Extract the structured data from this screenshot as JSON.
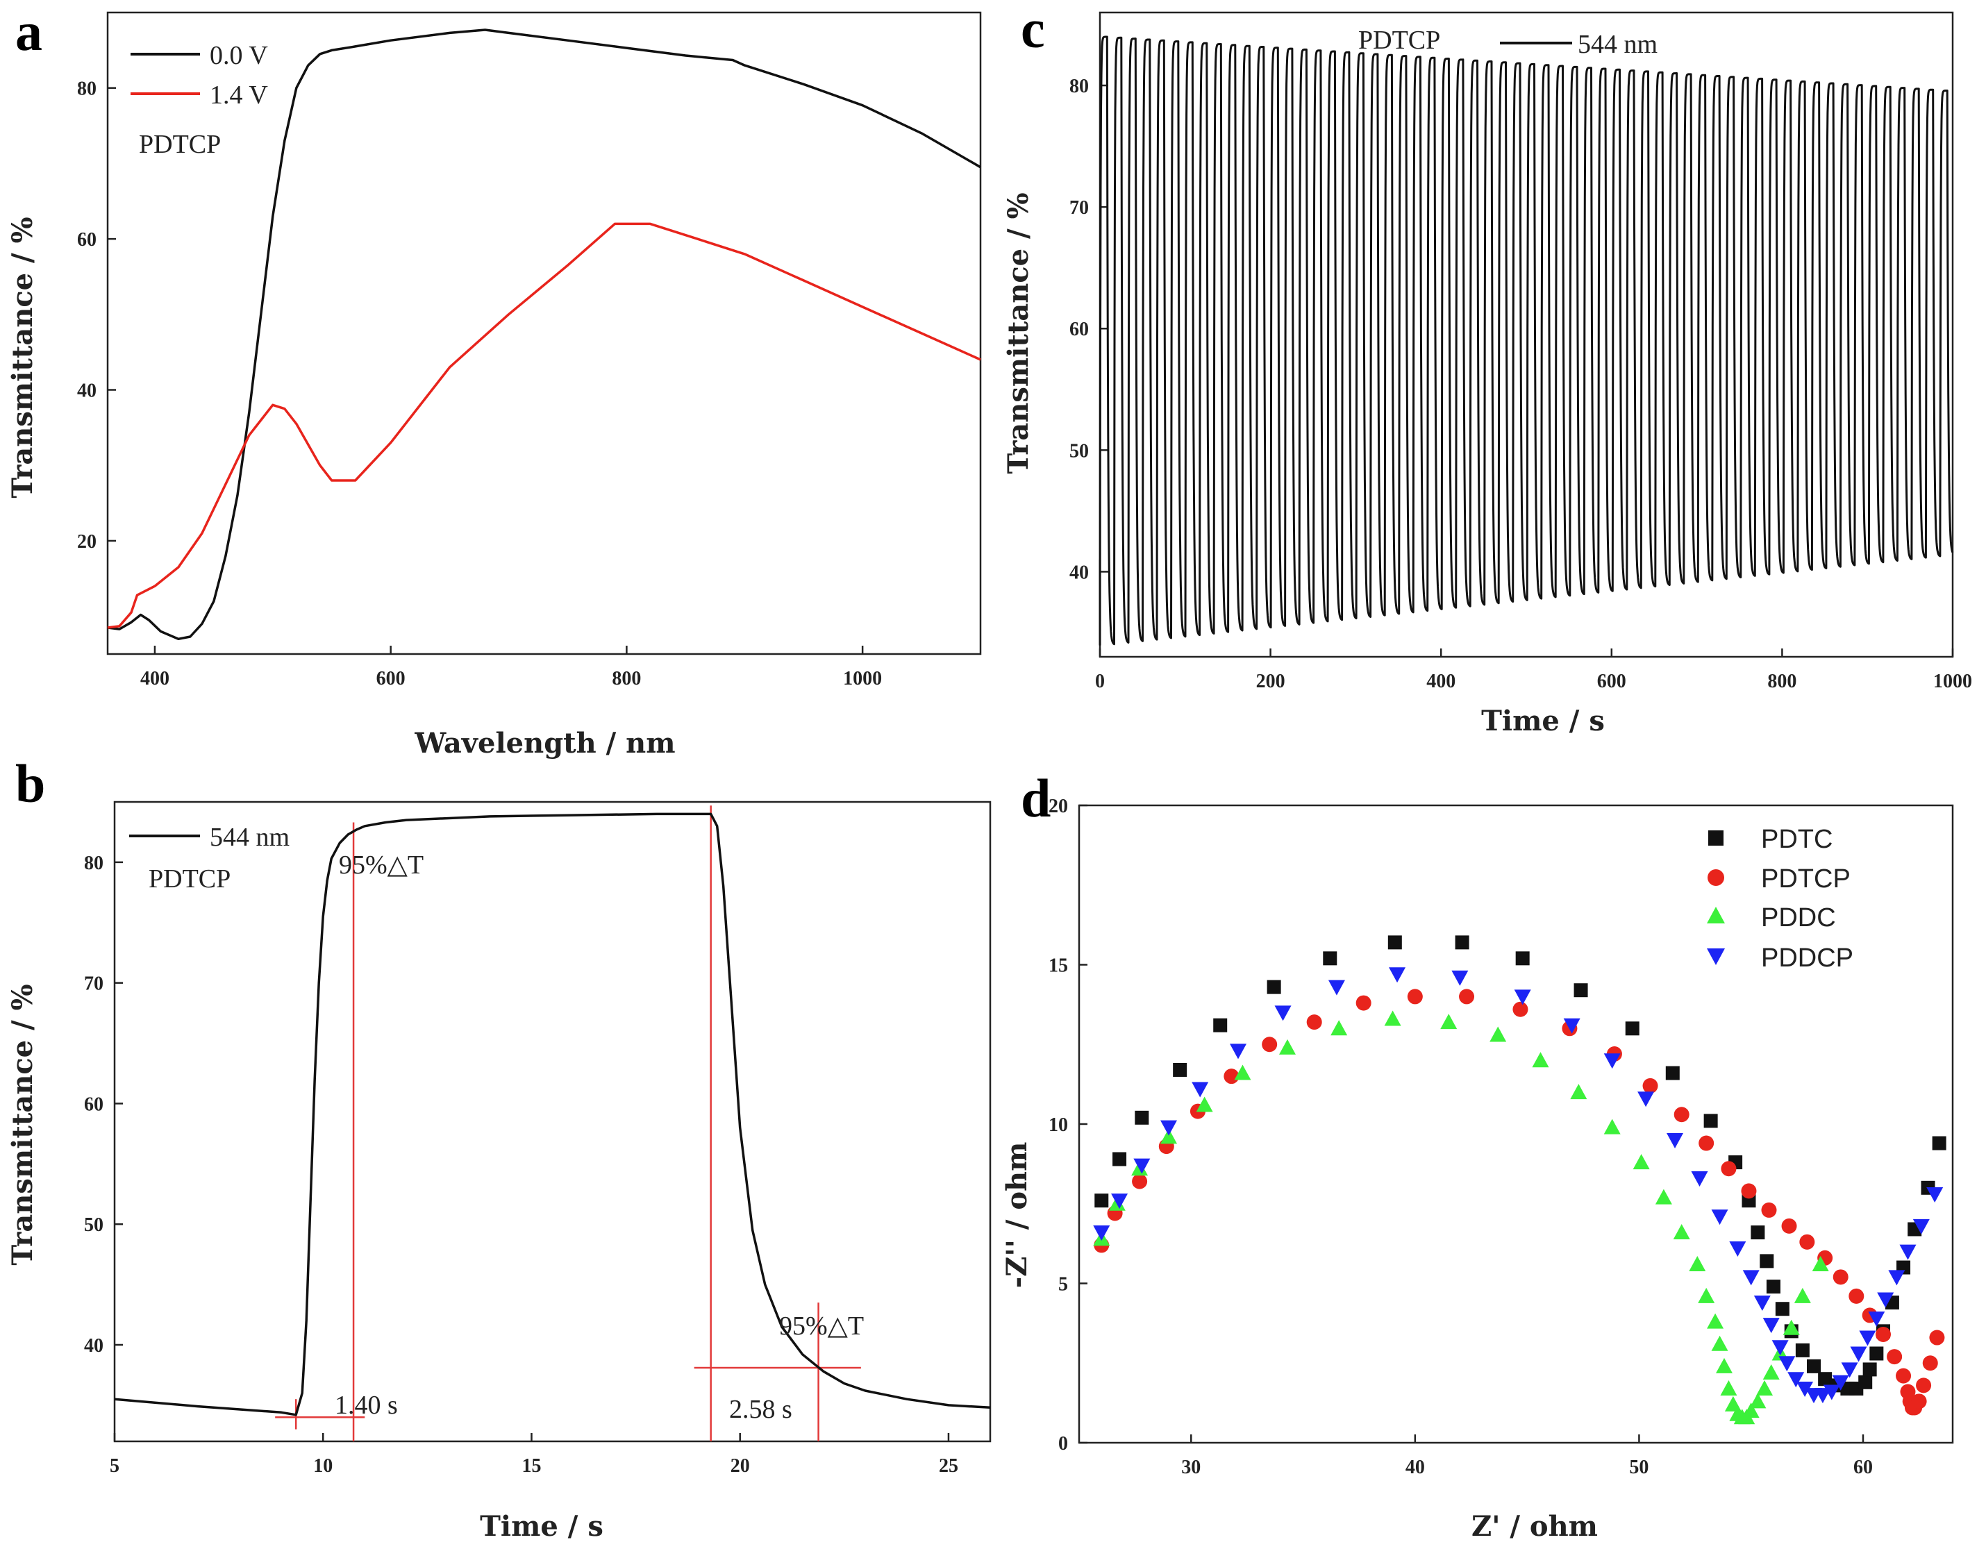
{
  "colors": {
    "black": "#111111",
    "red": "#e8241c",
    "green": "#3cf03a",
    "blue": "#1c24f4",
    "guide": "#e23a3a"
  },
  "chart_data": [
    {
      "panel": "a",
      "type": "line",
      "xlabel": "Wavelength / nm",
      "ylabel": "Transmittance / %",
      "xlim": [
        360,
        1100
      ],
      "ylim": [
        5,
        90
      ],
      "xticks": [
        400,
        600,
        800,
        1000
      ],
      "yticks": [
        20,
        40,
        60,
        80
      ],
      "annotations": [
        "PDTCP"
      ],
      "series": [
        {
          "name": "0.0 V",
          "color": "#111111",
          "x": [
            360,
            370,
            380,
            388,
            395,
            405,
            420,
            430,
            440,
            450,
            460,
            470,
            480,
            490,
            500,
            510,
            520,
            530,
            540,
            550,
            570,
            600,
            650,
            680,
            700,
            750,
            800,
            850,
            890,
            900,
            950,
            1000,
            1050,
            1100
          ],
          "y": [
            8.5,
            8.3,
            9.2,
            10.2,
            9.5,
            8.0,
            7.0,
            7.3,
            9.0,
            12.0,
            18.0,
            26.0,
            37.0,
            50.0,
            63.0,
            73.0,
            80.0,
            83.0,
            84.5,
            85.0,
            85.5,
            86.3,
            87.3,
            87.7,
            87.3,
            86.3,
            85.3,
            84.3,
            83.7,
            83.0,
            80.5,
            77.7,
            74.0,
            69.5
          ]
        },
        {
          "name": "1.4 V",
          "color": "#e8241c",
          "x": [
            360,
            370,
            380,
            385,
            400,
            420,
            440,
            460,
            480,
            500,
            510,
            520,
            540,
            550,
            570,
            600,
            650,
            700,
            750,
            790,
            820,
            860,
            900,
            950,
            1000,
            1050,
            1100
          ],
          "y": [
            8.5,
            8.7,
            10.5,
            12.8,
            14.0,
            16.5,
            21.0,
            27.5,
            34.0,
            38.0,
            37.5,
            35.5,
            30.0,
            28.0,
            28.0,
            33.0,
            43.0,
            50.0,
            56.5,
            62.0,
            62.0,
            60.0,
            58.0,
            54.5,
            51.0,
            47.5,
            44.0
          ]
        }
      ]
    },
    {
      "panel": "b",
      "type": "line",
      "xlabel": "Time / s",
      "ylabel": "Transmittance / %",
      "xlim": [
        5,
        26
      ],
      "ylim": [
        32,
        85
      ],
      "xticks": [
        5,
        10,
        15,
        20,
        25
      ],
      "yticks": [
        40,
        50,
        60,
        70,
        80
      ],
      "annotations": [
        "PDTCP",
        "95%△T",
        "95%△T",
        "1.40 s",
        "2.58 s"
      ],
      "series": [
        {
          "name": "544 nm",
          "color": "#111111",
          "x": [
            5,
            7,
            9,
            9.35,
            9.5,
            9.6,
            9.7,
            9.8,
            9.9,
            10.0,
            10.1,
            10.2,
            10.4,
            10.6,
            10.8,
            11.0,
            11.5,
            12,
            14,
            16,
            18,
            19.0,
            19.3,
            19.45,
            19.6,
            19.8,
            20.0,
            20.3,
            20.6,
            21.0,
            21.5,
            22.0,
            22.5,
            23,
            24,
            25,
            26
          ],
          "y": [
            35.5,
            34.9,
            34.4,
            34.2,
            36.0,
            42.0,
            52.0,
            62.0,
            70.0,
            75.5,
            78.5,
            80.3,
            81.6,
            82.3,
            82.7,
            83.0,
            83.3,
            83.5,
            83.8,
            83.9,
            84.0,
            84.0,
            84.0,
            83.0,
            78.0,
            68.0,
            58.0,
            49.5,
            45.0,
            41.5,
            39.2,
            37.8,
            36.8,
            36.2,
            35.5,
            35.0,
            34.8
          ]
        }
      ]
    },
    {
      "panel": "c",
      "type": "line",
      "xlabel": "Time / s",
      "ylabel": "Transmittance / %",
      "xlim": [
        0,
        1000
      ],
      "ylim": [
        33,
        86
      ],
      "xticks": [
        0,
        200,
        400,
        600,
        800,
        1000
      ],
      "yticks": [
        40,
        50,
        60,
        70,
        80
      ],
      "annotations": [
        "PDTCP"
      ],
      "series": [
        {
          "name": "544 nm",
          "color": "#111111",
          "period_s": 16.7,
          "cycles": 60,
          "max_start": 84.0,
          "max_end": 79.5,
          "min_start": 34.0,
          "min_end": 41.5
        }
      ]
    },
    {
      "panel": "d",
      "type": "scatter",
      "xlabel": "Z' / ohm",
      "ylabel": "-Z'' / ohm",
      "xlim": [
        25,
        64
      ],
      "ylim": [
        0,
        20
      ],
      "xticks": [
        30,
        40,
        50,
        60
      ],
      "yticks": [
        0,
        5,
        10,
        15,
        20
      ],
      "series": [
        {
          "name": "PDTC",
          "color": "#111111",
          "marker": "square",
          "x": [
            26.0,
            26.8,
            27.8,
            29.5,
            31.3,
            33.7,
            36.2,
            39.1,
            42.1,
            44.8,
            47.4,
            49.7,
            51.5,
            53.2,
            54.3,
            54.9,
            55.3,
            55.7,
            56.0,
            56.4,
            56.8,
            57.3,
            57.8,
            58.3,
            58.8,
            59.3,
            59.7,
            60.1,
            60.3,
            60.6,
            60.9,
            61.3,
            61.8,
            62.3,
            62.9,
            63.4
          ],
          "y": [
            7.6,
            8.9,
            10.2,
            11.7,
            13.1,
            14.3,
            15.2,
            15.7,
            15.7,
            15.2,
            14.2,
            13.0,
            11.6,
            10.1,
            8.8,
            7.6,
            6.6,
            5.7,
            4.9,
            4.2,
            3.5,
            2.9,
            2.4,
            2.0,
            1.8,
            1.7,
            1.7,
            1.9,
            2.3,
            2.8,
            3.5,
            4.4,
            5.5,
            6.7,
            8.0,
            9.4
          ]
        },
        {
          "name": "PDTCP",
          "color": "#e8241c",
          "marker": "circle",
          "x": [
            26.0,
            26.6,
            27.7,
            28.9,
            30.3,
            31.8,
            33.5,
            35.5,
            37.7,
            40.0,
            42.3,
            44.7,
            46.9,
            48.9,
            50.5,
            51.9,
            53.0,
            54.0,
            54.9,
            55.8,
            56.7,
            57.5,
            58.3,
            59.0,
            59.7,
            60.3,
            60.9,
            61.4,
            61.8,
            62.0,
            62.1,
            62.2,
            62.3,
            62.5,
            62.7,
            63.0,
            63.3
          ],
          "y": [
            6.2,
            7.2,
            8.2,
            9.3,
            10.4,
            11.5,
            12.5,
            13.2,
            13.8,
            14.0,
            14.0,
            13.6,
            13.0,
            12.2,
            11.2,
            10.3,
            9.4,
            8.6,
            7.9,
            7.3,
            6.8,
            6.3,
            5.8,
            5.2,
            4.6,
            4.0,
            3.4,
            2.7,
            2.1,
            1.6,
            1.3,
            1.1,
            1.1,
            1.3,
            1.8,
            2.5,
            3.3
          ]
        },
        {
          "name": "PDDC",
          "color": "#3cf03a",
          "marker": "triangle-up",
          "x": [
            26.0,
            26.7,
            27.7,
            29.0,
            30.6,
            32.3,
            34.3,
            36.6,
            39.0,
            41.5,
            43.7,
            45.6,
            47.3,
            48.8,
            50.1,
            51.1,
            51.9,
            52.6,
            53.0,
            53.4,
            53.6,
            53.8,
            54.0,
            54.2,
            54.4,
            54.6,
            54.8,
            55.0,
            55.3,
            55.6,
            55.9,
            56.3,
            56.8,
            57.3,
            58.1
          ],
          "y": [
            6.4,
            7.5,
            8.6,
            9.6,
            10.6,
            11.6,
            12.4,
            13.0,
            13.3,
            13.2,
            12.8,
            12.0,
            11.0,
            9.9,
            8.8,
            7.7,
            6.6,
            5.6,
            4.6,
            3.8,
            3.1,
            2.4,
            1.7,
            1.2,
            0.9,
            0.8,
            0.8,
            1.0,
            1.3,
            1.7,
            2.2,
            2.8,
            3.6,
            4.6,
            5.6
          ]
        },
        {
          "name": "PDDCP",
          "color": "#1c24f4",
          "marker": "triangle-down",
          "x": [
            26.0,
            26.8,
            27.8,
            29.0,
            30.4,
            32.1,
            34.1,
            36.5,
            39.2,
            42.0,
            44.8,
            47.0,
            48.8,
            50.3,
            51.6,
            52.7,
            53.6,
            54.4,
            55.0,
            55.5,
            55.9,
            56.3,
            56.6,
            57.0,
            57.4,
            57.8,
            58.2,
            58.6,
            59.0,
            59.4,
            59.8,
            60.2,
            60.6,
            61.0,
            61.5,
            62.0,
            62.6,
            63.2
          ],
          "y": [
            6.6,
            7.6,
            8.7,
            9.9,
            11.1,
            12.3,
            13.5,
            14.3,
            14.7,
            14.6,
            14.0,
            13.1,
            12.0,
            10.8,
            9.5,
            8.3,
            7.1,
            6.1,
            5.2,
            4.4,
            3.7,
            3.0,
            2.5,
            2.0,
            1.7,
            1.5,
            1.5,
            1.6,
            1.9,
            2.3,
            2.8,
            3.3,
            3.9,
            4.5,
            5.2,
            6.0,
            6.8,
            7.8
          ]
        }
      ]
    }
  ]
}
